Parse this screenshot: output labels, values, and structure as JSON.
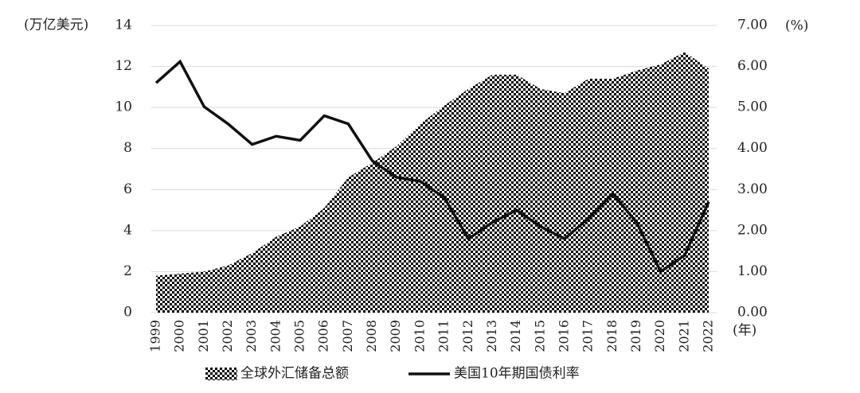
{
  "chart_data": {
    "type": "area-line",
    "y_label": "(万亿美元)",
    "y2_label": "(%)",
    "x_label": "(年)",
    "categories": [
      "1999",
      "2000",
      "2001",
      "2002",
      "2003",
      "2004",
      "2005",
      "2006",
      "2007",
      "2008",
      "2009",
      "2010",
      "2011",
      "2012",
      "2013",
      "2014",
      "2015",
      "2016",
      "2017",
      "2018",
      "2019",
      "2020",
      "2021",
      "2022"
    ],
    "series": [
      {
        "name": "全球外汇储备总额",
        "type": "area",
        "color": "#000000",
        "values": [
          1.8,
          1.9,
          2.0,
          2.3,
          2.9,
          3.7,
          4.2,
          5.1,
          6.6,
          7.3,
          8.1,
          9.2,
          10.1,
          10.9,
          11.6,
          11.6,
          10.9,
          10.7,
          11.4,
          11.4,
          11.8,
          12.1,
          12.7,
          11.9
        ]
      },
      {
        "name": "美国10年期国债利率",
        "type": "line",
        "axis": "y2",
        "color": "#111111",
        "values": [
          5.6,
          6.12,
          5.02,
          4.6,
          4.1,
          4.3,
          4.2,
          4.8,
          4.6,
          3.7,
          3.3,
          3.2,
          2.8,
          1.8,
          2.2,
          2.5,
          2.1,
          1.8,
          2.3,
          2.9,
          2.2,
          1.0,
          1.4,
          2.7
        ]
      }
    ],
    "ylim": [
      0,
      14
    ],
    "yticks": [
      0,
      2,
      4,
      6,
      8,
      10,
      12,
      14
    ],
    "y2lim": [
      0,
      7
    ],
    "y2ticks": [
      {
        "value": 0,
        "label": "0.00"
      },
      {
        "value": 1,
        "label": "1.00"
      },
      {
        "value": 2,
        "label": "2.00"
      },
      {
        "value": 3,
        "label": "3.00"
      },
      {
        "value": 4,
        "label": "4.00"
      },
      {
        "value": 5,
        "label": "5.00"
      },
      {
        "value": 6,
        "label": "6.00"
      },
      {
        "value": 7,
        "label": "7.00"
      }
    ],
    "grid": true,
    "legend": "bottom"
  }
}
